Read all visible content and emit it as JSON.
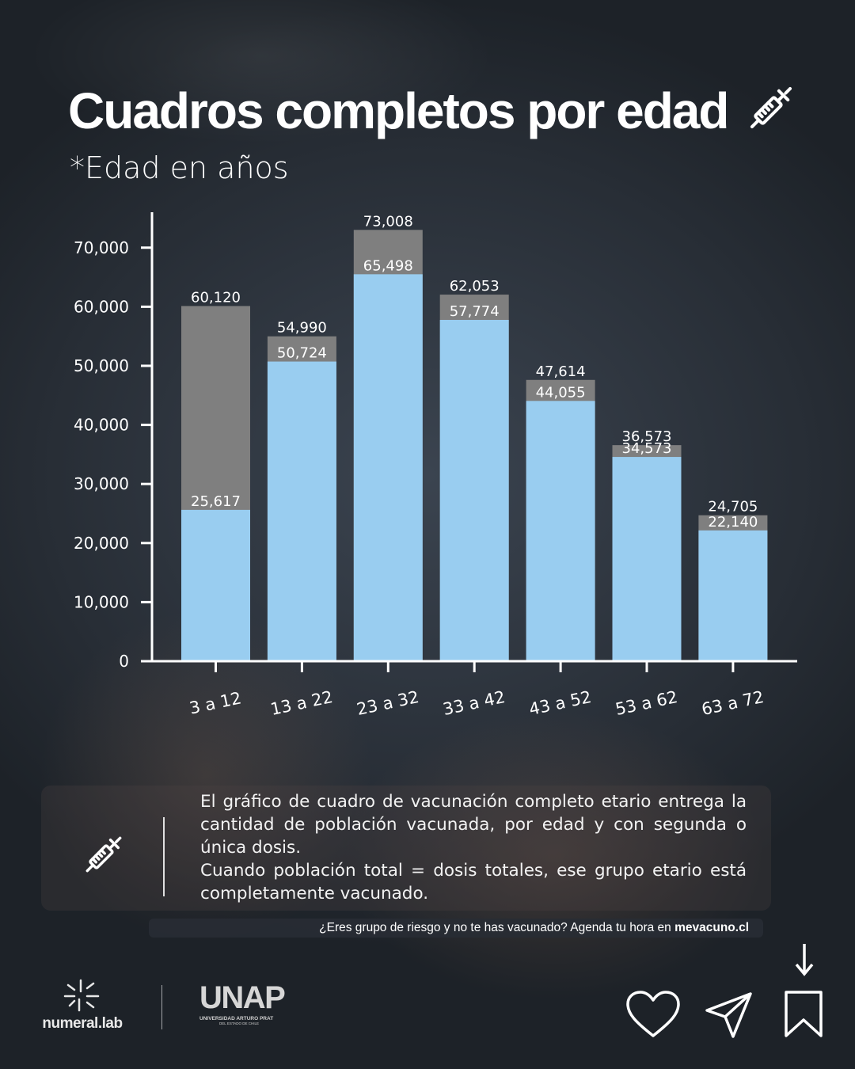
{
  "title": "Cuadros completos por edad",
  "subtitle": "*Edad en años",
  "icons": {
    "title_icon": "syringe-icon",
    "info_icon": "syringe-icon"
  },
  "colors": {
    "vaccinated": "#99cdf0",
    "population": "#7f7f7f",
    "axis": "#ffffff"
  },
  "chart_data": {
    "type": "bar",
    "categories": [
      "3 a 12",
      "13 a 22",
      "23 a 32",
      "33 a 42",
      "43 a 52",
      "53 a 62",
      "63 a 72"
    ],
    "series": [
      {
        "values": [
          60120,
          54990,
          73008,
          62053,
          47614,
          36573,
          24705
        ]
      },
      {
        "values": [
          25617,
          50724,
          65498,
          57774,
          44055,
          34573,
          22140
        ]
      }
    ],
    "ylim": [
      0,
      76000
    ],
    "yticks": [
      0,
      10000,
      20000,
      30000,
      40000,
      50000,
      60000,
      70000
    ],
    "ytick_labels": [
      "0",
      "10,000",
      "20,000",
      "30,000",
      "40,000",
      "50,000",
      "60,000",
      "70,000"
    ],
    "data_labels_top": [
      "60,120",
      "54,990",
      "73,008",
      "62,053",
      "47,614",
      "36,573",
      "24,705"
    ],
    "data_labels_inner": [
      "25,617",
      "50,724",
      "65,498",
      "57,774",
      "44,055",
      "34,573",
      "22,140"
    ],
    "xlabel": "",
    "ylabel": "",
    "grid": false,
    "bar_mode": "overlay"
  },
  "info": {
    "paragraph1": "El gráfico de cuadro de vacunación completo etario entrega la cantidad de población vacunada, por edad y con segunda o única dosis.",
    "paragraph2": "Cuando población total = dosis totales, ese grupo etario está completamente vacunado."
  },
  "cta": {
    "text": "¿Eres grupo de riesgo y no te has vacunado? Agenda tu hora en ",
    "link": "mevacuno.cl"
  },
  "logos": {
    "numeral": "numeral.lab",
    "unap": "UNAP",
    "unap_subtitle": "UNIVERSIDAD ARTURO PRAT",
    "unap_subtitle2": "DEL ESTADO DE CHILE"
  },
  "social_icons": [
    "heart-icon",
    "send-icon",
    "bookmark-icon",
    "arrow-down-icon"
  ]
}
